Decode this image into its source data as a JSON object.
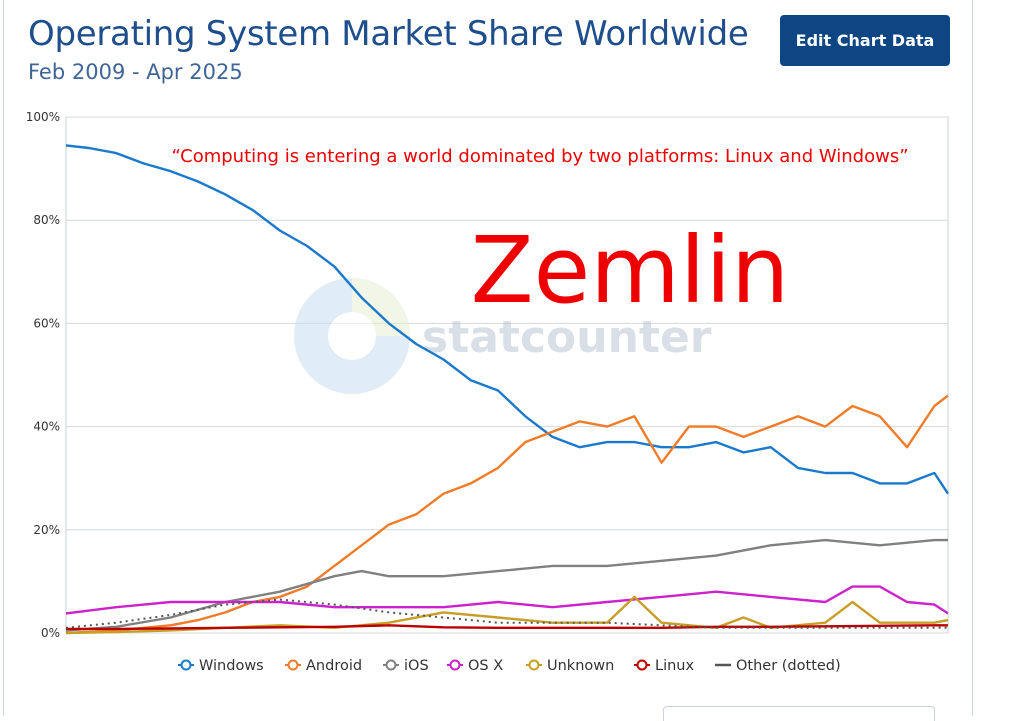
{
  "header": {
    "title": "Operating System Market Share Worldwide",
    "subtitle": "Feb 2009 - Apr 2025",
    "edit_button_label": "Edit Chart Data"
  },
  "watermark": {
    "text": "statcounter"
  },
  "annotations": {
    "quote": "“Computing is entering a world dominated by two platforms: Linux and Windows”",
    "quote_color": "#ee0000",
    "name": "Zemlin",
    "name_color": "#ee0000"
  },
  "chart_data": {
    "type": "line",
    "title": "Operating System Market Share Worldwide",
    "subtitle": "Feb 2009 - Apr 2025",
    "x_range": [
      "2009-02",
      "2025-04"
    ],
    "ylim": [
      0,
      100
    ],
    "yticks": [
      0,
      20,
      40,
      60,
      80,
      100
    ],
    "ytick_labels": [
      "0%",
      "20%",
      "40%",
      "60%",
      "80%",
      "100%"
    ],
    "grid": true,
    "legend_position": "bottom",
    "series": [
      {
        "name": "Windows",
        "color": "#1b79cc",
        "style": "line",
        "x": [
          2009.08,
          2009.5,
          2010.0,
          2010.5,
          2011.0,
          2011.5,
          2012.0,
          2012.5,
          2013.0,
          2013.5,
          2014.0,
          2014.5,
          2015.0,
          2015.5,
          2016.0,
          2016.5,
          2017.0,
          2017.5,
          2018.0,
          2018.5,
          2019.0,
          2019.5,
          2020.0,
          2020.5,
          2021.0,
          2021.5,
          2022.0,
          2022.5,
          2023.0,
          2023.5,
          2024.0,
          2024.5,
          2025.0,
          2025.25
        ],
        "y": [
          94.5,
          94,
          93,
          91,
          89.5,
          87.5,
          85,
          82,
          78,
          75,
          71,
          65,
          60,
          56,
          53,
          49,
          47,
          42,
          38,
          36,
          37,
          37,
          36,
          36,
          37,
          35,
          36,
          32,
          31,
          31,
          29,
          29,
          31,
          27
        ]
      },
      {
        "name": "Android",
        "color": "#f07b28",
        "style": "line",
        "x": [
          2009.08,
          2010.0,
          2011.0,
          2011.5,
          2012.0,
          2012.5,
          2013.0,
          2013.5,
          2014.0,
          2014.5,
          2015.0,
          2015.5,
          2016.0,
          2016.5,
          2017.0,
          2017.5,
          2018.0,
          2018.5,
          2019.0,
          2019.5,
          2020.0,
          2020.5,
          2021.0,
          2021.5,
          2022.0,
          2022.5,
          2023.0,
          2023.5,
          2024.0,
          2024.5,
          2025.0,
          2025.25
        ],
        "y": [
          0,
          0.5,
          1.5,
          2.5,
          4,
          6,
          7,
          9,
          13,
          17,
          21,
          23,
          27,
          29,
          32,
          37,
          39,
          41,
          40,
          42,
          33,
          40,
          40,
          38,
          40,
          42,
          40,
          44,
          42,
          36,
          44,
          46
        ]
      },
      {
        "name": "iOS",
        "color": "#808080",
        "style": "line",
        "x": [
          2009.08,
          2010.0,
          2011.0,
          2012.0,
          2013.0,
          2014.0,
          2014.5,
          2015.0,
          2016.0,
          2017.0,
          2018.0,
          2019.0,
          2020.0,
          2021.0,
          2022.0,
          2023.0,
          2024.0,
          2025.0,
          2025.25
        ],
        "y": [
          0.5,
          1.2,
          3,
          6,
          8,
          11,
          12,
          11,
          11,
          12,
          13,
          13,
          14,
          15,
          17,
          18,
          17,
          18,
          18
        ]
      },
      {
        "name": "OS X",
        "color": "#cc22cc",
        "style": "line",
        "x": [
          2009.08,
          2010.0,
          2011.0,
          2012.0,
          2013.0,
          2014.0,
          2015.0,
          2016.0,
          2017.0,
          2018.0,
          2019.0,
          2020.0,
          2021.0,
          2022.0,
          2023.0,
          2023.5,
          2024.0,
          2024.5,
          2025.0,
          2025.25
        ],
        "y": [
          3.8,
          5,
          6,
          6,
          6,
          5,
          5,
          5,
          6,
          5,
          6,
          7,
          8,
          7,
          6,
          9,
          9,
          6,
          5.5,
          3.8
        ]
      },
      {
        "name": "Unknown",
        "color": "#c89e27",
        "style": "line",
        "x": [
          2009.08,
          2010.0,
          2011.0,
          2012.0,
          2013.0,
          2014.0,
          2015.0,
          2016.0,
          2017.0,
          2018.0,
          2019.0,
          2019.5,
          2020.0,
          2021.0,
          2021.5,
          2022.0,
          2023.0,
          2023.5,
          2024.0,
          2025.0,
          2025.25
        ],
        "y": [
          0,
          0.2,
          0.5,
          1,
          1.5,
          1,
          2,
          4,
          3,
          2,
          2,
          7,
          2,
          1,
          3,
          1,
          2,
          6,
          2,
          2,
          2.5
        ]
      },
      {
        "name": "Linux",
        "color": "#bb0000",
        "style": "line",
        "x": [
          2009.08,
          2010.0,
          2011.0,
          2012.0,
          2013.0,
          2014.0,
          2015.0,
          2016.0,
          2017.0,
          2018.0,
          2019.0,
          2020.0,
          2021.0,
          2022.0,
          2023.0,
          2024.0,
          2025.0,
          2025.25
        ],
        "y": [
          0.8,
          0.8,
          0.9,
          1,
          1.1,
          1.2,
          1.5,
          1.1,
          1,
          1,
          1,
          1,
          1.2,
          1.2,
          1.3,
          1.4,
          1.5,
          1.5
        ]
      },
      {
        "name": "Other (dotted)",
        "color": "#555555",
        "style": "dotted",
        "x": [
          2009.08,
          2010.0,
          2011.0,
          2012.0,
          2013.0,
          2014.0,
          2015.0,
          2016.0,
          2017.0,
          2018.0,
          2019.0,
          2020.0,
          2021.0,
          2022.0,
          2023.0,
          2024.0,
          2025.0,
          2025.25
        ],
        "y": [
          1,
          2,
          3.5,
          5.5,
          6.5,
          5.5,
          4,
          3,
          2,
          2,
          2,
          1.5,
          1,
          1,
          1,
          1,
          1,
          1
        ]
      }
    ]
  }
}
